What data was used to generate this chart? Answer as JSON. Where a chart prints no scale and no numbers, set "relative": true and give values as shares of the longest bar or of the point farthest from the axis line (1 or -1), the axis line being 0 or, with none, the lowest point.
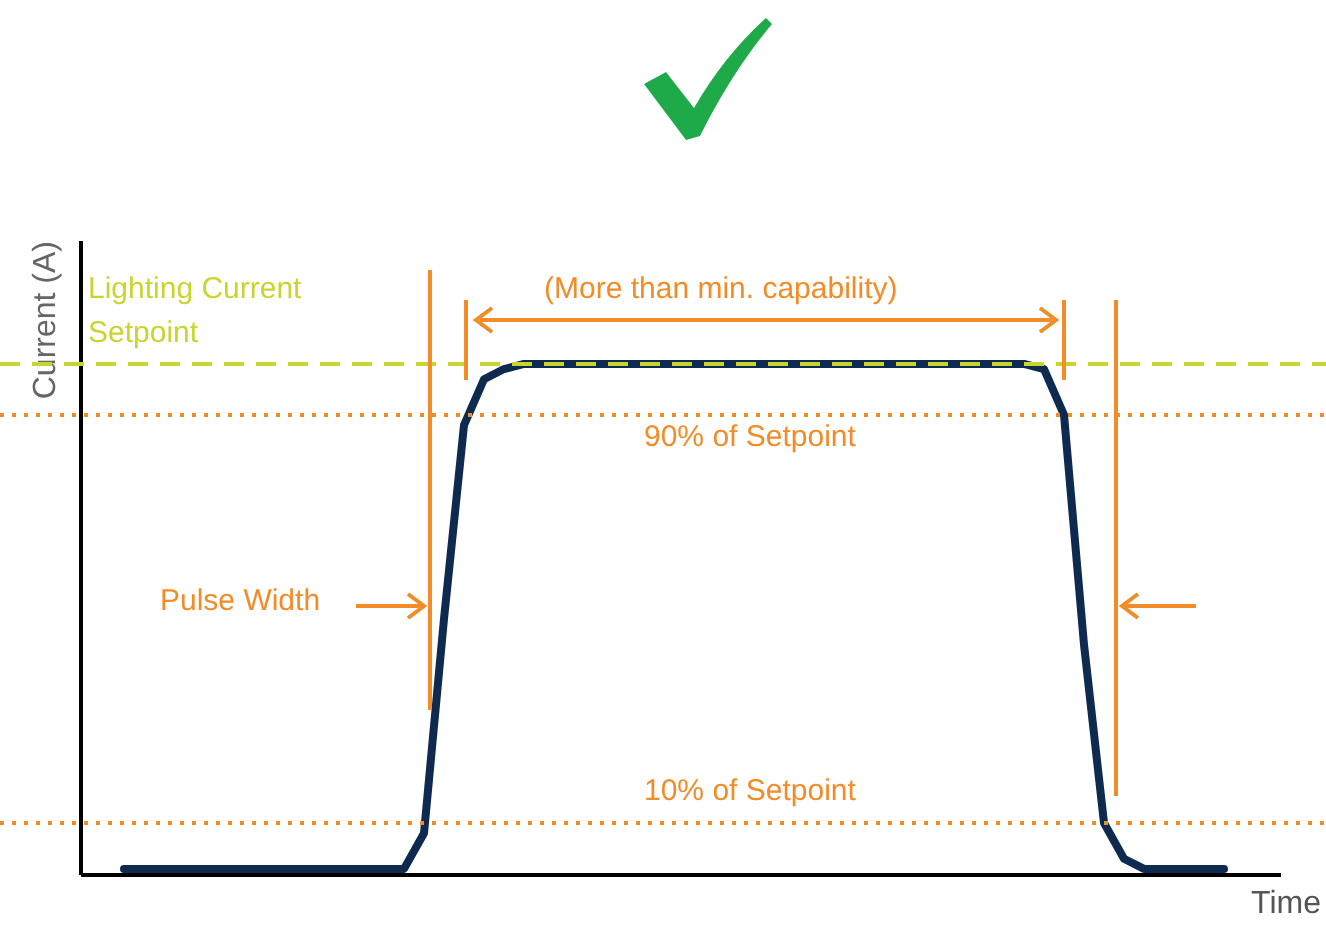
{
  "chart_data": {
    "type": "line",
    "xlabel": "Time",
    "ylabel": "Current (A)",
    "categories": [
      null,
      null,
      null,
      null,
      null,
      null,
      null,
      null,
      null,
      null,
      null,
      null,
      null,
      null,
      null,
      null,
      null,
      null,
      null,
      null,
      null,
      null,
      null,
      null,
      null,
      null,
      null,
      null,
      null,
      null,
      null,
      null,
      null,
      null,
      null,
      null,
      null,
      null,
      null,
      null,
      null,
      null,
      null,
      null,
      null,
      null,
      null,
      null,
      null,
      null,
      null,
      null,
      null,
      null,
      null,
      null
    ],
    "relative": true,
    "series": [
      {
        "color": "#0e2a4f",
        "values": [
          0.01,
          0.01,
          0.01,
          0.01,
          0.01,
          0.01,
          0.01,
          0.01,
          0.01,
          0.01,
          0.01,
          0.01,
          0.01,
          0.01,
          0.01,
          0.08,
          0.5,
          0.88,
          0.97,
          0.99,
          1,
          1,
          1,
          1,
          1,
          1,
          1,
          1,
          1,
          1,
          1,
          1,
          1,
          1,
          1,
          1,
          1,
          1,
          1,
          1,
          1,
          1,
          1,
          1,
          1,
          1,
          0.99,
          0.9,
          0.45,
          0.1,
          0.03,
          0.01,
          0.01,
          0.01,
          0.01,
          0.01
        ]
      }
    ],
    "ref_lines": [
      {
        "axis": "y",
        "value": 1,
        "label": "Lighting Current Setpoint",
        "color": "#c9d52e",
        "line_style": "dashed"
      },
      {
        "axis": "y",
        "value": 0.9,
        "label": "90% of Setpoint",
        "color": "#f28c28",
        "line_style": "dotted"
      },
      {
        "axis": "y",
        "value": 0.1,
        "label": "10% of Setpoint",
        "color": "#f28c28",
        "line_style": "dotted"
      }
    ],
    "annotations": [
      "(More than min. capability)",
      "Pulse Width"
    ],
    "marker": "none",
    "line_style": "solid"
  }
}
